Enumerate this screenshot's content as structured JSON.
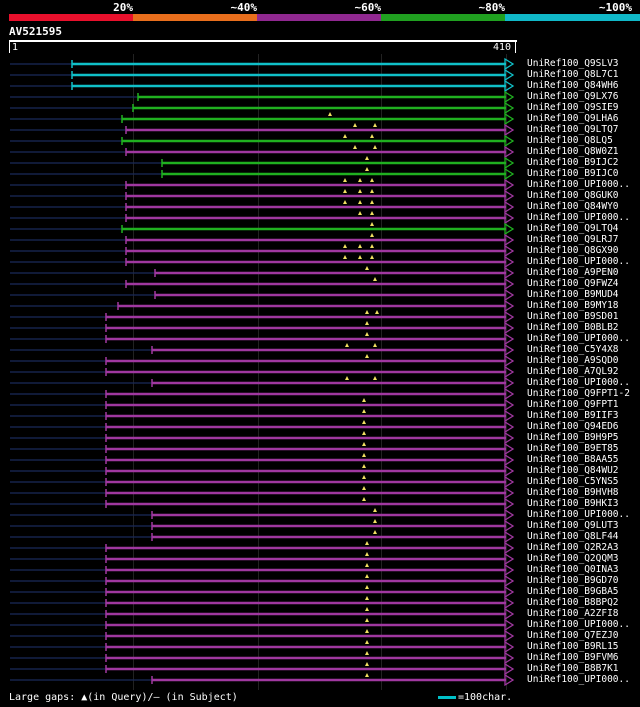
{
  "legend": [
    {
      "label": "20%",
      "color": "#e8102c"
    },
    {
      "label": "~40%",
      "color": "#e86e1c"
    },
    {
      "label": "~60%",
      "color": "#902890"
    },
    {
      "label": "~80%",
      "color": "#20a020"
    },
    {
      "label": "~100%",
      "color": "#10b8c8"
    }
  ],
  "query": {
    "name": "AV521595",
    "start": "1",
    "end": "410",
    "length": 410
  },
  "footer": {
    "gaps": "Large gaps: ▲(in Query)/– (in Subject)",
    "scale": "=100char."
  },
  "colors": {
    "cyan": "#10c0c8",
    "green": "#20b020",
    "purple": "#a038a0"
  },
  "hits": [
    {
      "name": "UniRef100_Q9SLV3",
      "color": "cyan",
      "start": 72,
      "tail": 70,
      "marks": []
    },
    {
      "name": "UniRef100_Q8L7C1",
      "color": "cyan",
      "start": 72,
      "tail": 70,
      "marks": []
    },
    {
      "name": "UniRef100_Q84WH6",
      "color": "cyan",
      "start": 72,
      "tail": 70,
      "marks": []
    },
    {
      "name": "UniRef100_Q9LX76",
      "color": "green",
      "start": 138,
      "tail": 110,
      "marks": []
    },
    {
      "name": "UniRef100_Q9SIE9",
      "color": "green",
      "start": 133,
      "tail": 125,
      "marks": []
    },
    {
      "name": "UniRef100_Q9LHA6",
      "color": "green",
      "start": 122,
      "tail": 115,
      "marks": [
        330
      ]
    },
    {
      "name": "UniRef100_Q9LTQ7",
      "color": "purple",
      "start": 126,
      "tail": 125,
      "marks": [
        355,
        375
      ]
    },
    {
      "name": "UniRef100_Q8LQ5",
      "color": "green",
      "start": 122,
      "tail": 120,
      "marks": [
        345,
        372
      ]
    },
    {
      "name": "UniRef100_Q8W0Z1",
      "color": "purple",
      "start": 126,
      "tail": 125,
      "marks": [
        355,
        375
      ]
    },
    {
      "name": "UniRef100_B9IJC2",
      "color": "green",
      "start": 162,
      "tail": 125,
      "marks": [
        367
      ]
    },
    {
      "name": "UniRef100_B9IJC0",
      "color": "green",
      "start": 162,
      "tail": 125,
      "marks": [
        367
      ]
    },
    {
      "name": "UniRef100_UPI000..",
      "color": "purple",
      "start": 126,
      "tail": 125,
      "marks": [
        345,
        360,
        372
      ]
    },
    {
      "name": "UniRef100_Q8GUK0",
      "color": "purple",
      "start": 126,
      "tail": 125,
      "marks": [
        345,
        360,
        372
      ]
    },
    {
      "name": "UniRef100_Q84WY0",
      "color": "purple",
      "start": 126,
      "tail": 125,
      "marks": [
        345,
        360,
        372
      ]
    },
    {
      "name": "UniRef100_UPI000..",
      "color": "purple",
      "start": 126,
      "tail": 330,
      "marks": [
        360,
        372
      ]
    },
    {
      "name": "UniRef100_Q9LTQ4",
      "color": "green",
      "start": 122,
      "tail": 120,
      "marks": [
        372
      ]
    },
    {
      "name": "UniRef100_Q9LRJ7",
      "color": "purple",
      "start": 126,
      "tail": 330,
      "marks": [
        372
      ]
    },
    {
      "name": "UniRef100_Q8GX90",
      "color": "purple",
      "start": 126,
      "tail": 125,
      "marks": [
        345,
        360,
        372
      ]
    },
    {
      "name": "UniRef100_UPI000..",
      "color": "purple",
      "start": 126,
      "tail": 125,
      "marks": [
        345,
        360,
        372
      ]
    },
    {
      "name": "UniRef100_A9PEN0",
      "color": "purple",
      "start": 155,
      "tail": 125,
      "marks": [
        367
      ]
    },
    {
      "name": "UniRef100_Q9FWZ4",
      "color": "purple",
      "start": 126,
      "tail": 125,
      "marks": [
        375
      ]
    },
    {
      "name": "UniRef100_B9MUD4",
      "color": "purple",
      "start": 155,
      "tail": 125,
      "marks": []
    },
    {
      "name": "UniRef100_B9MY18",
      "color": "purple",
      "start": 118,
      "tail": 118,
      "marks": []
    },
    {
      "name": "UniRef100_B9SD01",
      "color": "purple",
      "start": 106,
      "tail": 60,
      "marks": [
        367,
        377
      ]
    },
    {
      "name": "UniRef100_B0BLB2",
      "color": "purple",
      "start": 106,
      "tail": 60,
      "marks": [
        367
      ]
    },
    {
      "name": "UniRef100_UPI000..",
      "color": "purple",
      "start": 106,
      "tail": 60,
      "marks": [
        367
      ]
    },
    {
      "name": "UniRef100_C5Y4X8",
      "color": "purple",
      "start": 152,
      "tail": 125,
      "marks": [
        347,
        375
      ]
    },
    {
      "name": "UniRef100_A9SQD0",
      "color": "purple",
      "start": 106,
      "tail": 60,
      "marks": [
        367
      ]
    },
    {
      "name": "UniRef100_A7QL92",
      "color": "purple",
      "start": 106,
      "tail": 60,
      "marks": []
    },
    {
      "name": "UniRef100_UPI000..",
      "color": "purple",
      "start": 152,
      "tail": 150,
      "marks": [
        347,
        375
      ]
    },
    {
      "name": "UniRef100_Q9FPT1-2",
      "color": "purple",
      "start": 106,
      "tail": 60,
      "marks": []
    },
    {
      "name": "UniRef100_Q9FPT1",
      "color": "purple",
      "start": 106,
      "tail": 60,
      "marks": [
        364
      ]
    },
    {
      "name": "UniRef100_B9IIF3",
      "color": "purple",
      "start": 106,
      "tail": 60,
      "marks": [
        364
      ]
    },
    {
      "name": "UniRef100_Q94ED6",
      "color": "purple",
      "start": 106,
      "tail": 60,
      "marks": [
        364
      ]
    },
    {
      "name": "UniRef100_B9H9P5",
      "color": "purple",
      "start": 106,
      "tail": 60,
      "marks": [
        364
      ]
    },
    {
      "name": "UniRef100_B9ET85",
      "color": "purple",
      "start": 106,
      "tail": 60,
      "marks": [
        364
      ]
    },
    {
      "name": "UniRef100_B8AA55",
      "color": "purple",
      "start": 106,
      "tail": 60,
      "marks": [
        364
      ]
    },
    {
      "name": "UniRef100_Q84WU2",
      "color": "purple",
      "start": 106,
      "tail": 60,
      "marks": [
        364
      ]
    },
    {
      "name": "UniRef100_C5YNS5",
      "color": "purple",
      "start": 106,
      "tail": 60,
      "marks": [
        364
      ]
    },
    {
      "name": "UniRef100_B9HVH8",
      "color": "purple",
      "start": 106,
      "tail": 60,
      "marks": [
        364
      ]
    },
    {
      "name": "UniRef100_B9HKI3",
      "color": "purple",
      "start": 106,
      "tail": 60,
      "marks": [
        364
      ]
    },
    {
      "name": "UniRef100_UPI000..",
      "color": "purple",
      "start": 152,
      "tail": 150,
      "marks": [
        375
      ]
    },
    {
      "name": "UniRef100_Q9LUT3",
      "color": "purple",
      "start": 152,
      "tail": 150,
      "marks": [
        375
      ]
    },
    {
      "name": "UniRef100_Q8LF44",
      "color": "purple",
      "start": 152,
      "tail": 150,
      "marks": [
        375
      ]
    },
    {
      "name": "UniRef100_Q2R2A3",
      "color": "purple",
      "start": 106,
      "tail": 60,
      "marks": [
        367
      ]
    },
    {
      "name": "UniRef100_Q2QQM3",
      "color": "purple",
      "start": 106,
      "tail": 60,
      "marks": [
        367
      ]
    },
    {
      "name": "UniRef100_Q0INA3",
      "color": "purple",
      "start": 106,
      "tail": 60,
      "marks": [
        367
      ]
    },
    {
      "name": "UniRef100_B9GD70",
      "color": "purple",
      "start": 106,
      "tail": 60,
      "marks": [
        367
      ]
    },
    {
      "name": "UniRef100_B9GBA5",
      "color": "purple",
      "start": 106,
      "tail": 60,
      "marks": [
        367
      ]
    },
    {
      "name": "UniRef100_B8BPQ2",
      "color": "purple",
      "start": 106,
      "tail": 60,
      "marks": [
        367
      ]
    },
    {
      "name": "UniRef100_A2ZFI8",
      "color": "purple",
      "start": 106,
      "tail": 60,
      "marks": [
        367
      ]
    },
    {
      "name": "UniRef100_UPI000..",
      "color": "purple",
      "start": 106,
      "tail": 60,
      "marks": [
        367
      ]
    },
    {
      "name": "UniRef100_Q7EZJ0",
      "color": "purple",
      "start": 106,
      "tail": 60,
      "marks": [
        367
      ]
    },
    {
      "name": "UniRef100_B9RL15",
      "color": "purple",
      "start": 106,
      "tail": 60,
      "marks": [
        367
      ]
    },
    {
      "name": "UniRef100_B9FVM6",
      "color": "purple",
      "start": 106,
      "tail": 60,
      "marks": [
        367
      ]
    },
    {
      "name": "UniRef100_B8B7K1",
      "color": "purple",
      "start": 106,
      "tail": 60,
      "marks": [
        367
      ]
    },
    {
      "name": "UniRef100_UPI000..",
      "color": "purple",
      "start": 152,
      "tail": 125,
      "marks": [
        367
      ]
    }
  ]
}
